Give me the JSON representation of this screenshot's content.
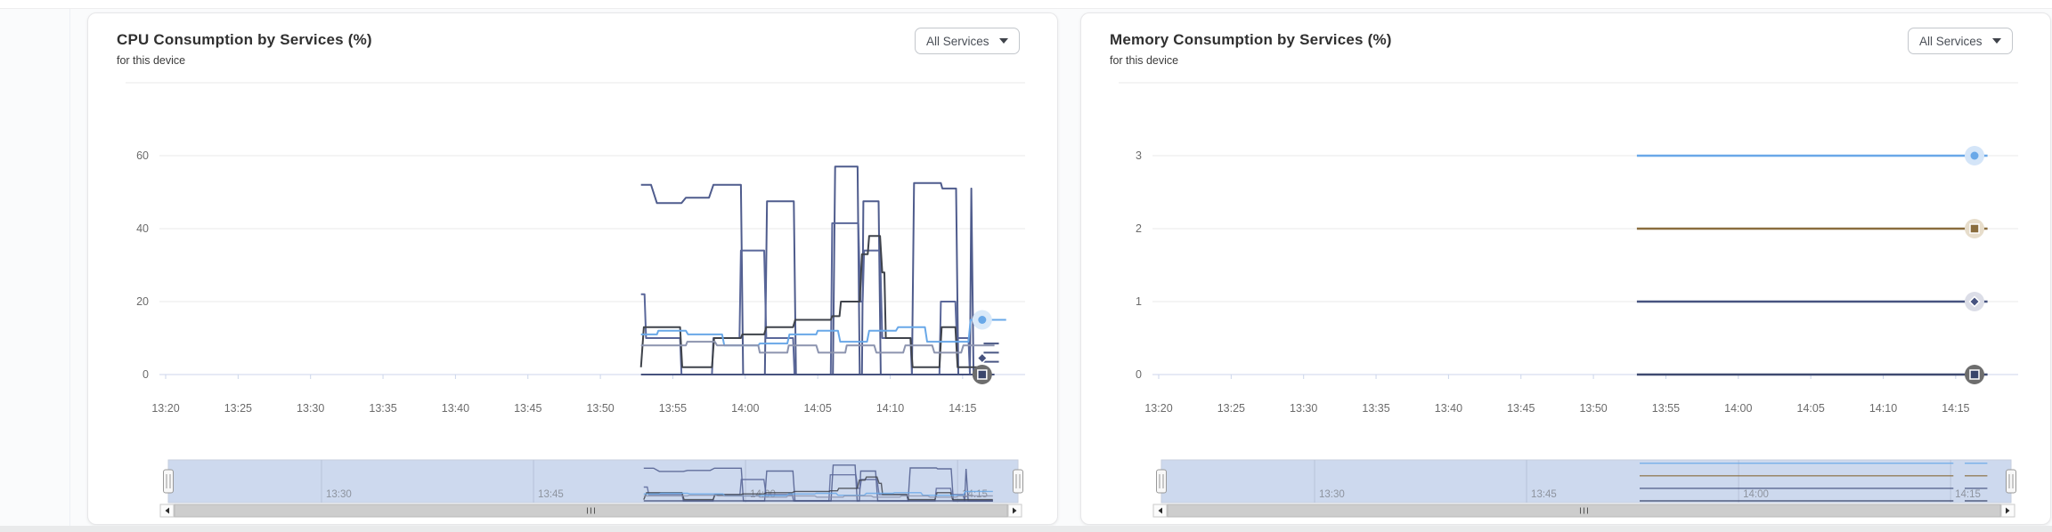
{
  "chart_data": [
    {
      "id": "cpu",
      "type": "line",
      "title": "CPU Consumption by Services (%)",
      "subtitle": "for this device",
      "service_filter": "All Services",
      "ylim": [
        0,
        80
      ],
      "grid": true,
      "legend": "none",
      "y_axis": {
        "gridlines": [
          0,
          20,
          40,
          60,
          80
        ],
        "ticks": [
          {
            "value": 0,
            "label": "0"
          },
          {
            "value": 20,
            "label": "20"
          },
          {
            "value": 40,
            "label": "40"
          },
          {
            "value": 60,
            "label": "60"
          }
        ]
      },
      "x_axis": {
        "ticks": [
          {
            "minute": 0,
            "label": "13:20"
          },
          {
            "minute": 5,
            "label": "13:25"
          },
          {
            "minute": 10,
            "label": "13:30"
          },
          {
            "minute": 15,
            "label": "13:35"
          },
          {
            "minute": 20,
            "label": "13:40"
          },
          {
            "minute": 25,
            "label": "13:45"
          },
          {
            "minute": 30,
            "label": "13:50"
          },
          {
            "minute": 35,
            "label": "13:55"
          },
          {
            "minute": 40,
            "label": "14:00"
          },
          {
            "minute": 45,
            "label": "14:05"
          },
          {
            "minute": 50,
            "label": "14:10"
          },
          {
            "minute": 55,
            "label": "14:15"
          }
        ]
      },
      "series": [
        {
          "color": "#4f5c8d",
          "width": 2,
          "points": [
            [
              32.8,
              52
            ],
            [
              33.5,
              52
            ],
            [
              33.9,
              47
            ],
            [
              35.6,
              47
            ],
            [
              35.9,
              48.5
            ],
            [
              37.5,
              48.5
            ],
            [
              37.8,
              52
            ],
            [
              39.7,
              52
            ],
            [
              39.85,
              0
            ],
            [
              41.35,
              0
            ],
            [
              41.5,
              47.5
            ],
            [
              43.35,
              47.5
            ],
            [
              43.5,
              0
            ],
            [
              46.05,
              0
            ],
            [
              46.2,
              57
            ],
            [
              47.75,
              57
            ],
            [
              47.9,
              0
            ],
            [
              48.05,
              0
            ],
            [
              48.15,
              47.5
            ],
            [
              49.2,
              47.5
            ],
            [
              49.35,
              0
            ],
            [
              51.5,
              0
            ],
            [
              51.65,
              52.5
            ],
            [
              53.5,
              52.5
            ],
            [
              53.6,
              51
            ],
            [
              54.55,
              51
            ],
            [
              54.7,
              0
            ],
            [
              55.5,
              0
            ],
            [
              55.6,
              51
            ],
            [
              55.75,
              0
            ],
            [
              56.4,
              0
            ]
          ]
        },
        {
          "color": "#5a679a",
          "width": 2,
          "points": [
            [
              32.8,
              22
            ],
            [
              33.05,
              22
            ],
            [
              33.15,
              10
            ],
            [
              35.5,
              10
            ],
            [
              35.6,
              0
            ],
            [
              37.7,
              0
            ],
            [
              37.8,
              10
            ],
            [
              39.6,
              10
            ],
            [
              39.7,
              34
            ],
            [
              41.3,
              34
            ],
            [
              41.45,
              10
            ],
            [
              43.3,
              10
            ],
            [
              43.4,
              0
            ],
            [
              45.9,
              0
            ],
            [
              46.0,
              41.5
            ],
            [
              47.8,
              41.5
            ],
            [
              47.95,
              20
            ],
            [
              48.1,
              20
            ],
            [
              48.2,
              34
            ],
            [
              49.3,
              34
            ],
            [
              49.45,
              10
            ],
            [
              51.4,
              10
            ],
            [
              51.5,
              0
            ],
            [
              53.4,
              0
            ],
            [
              53.5,
              20
            ],
            [
              54.5,
              20
            ],
            [
              54.6,
              10
            ],
            [
              55.4,
              10
            ],
            [
              55.5,
              0
            ],
            [
              56.4,
              0
            ]
          ]
        },
        {
          "color": "#3f434b",
          "width": 2,
          "points": [
            [
              32.8,
              2
            ],
            [
              33.0,
              13
            ],
            [
              35.5,
              13
            ],
            [
              35.65,
              2
            ],
            [
              37.7,
              2
            ],
            [
              37.85,
              10
            ],
            [
              39.7,
              10
            ],
            [
              39.8,
              11
            ],
            [
              41.3,
              11
            ],
            [
              41.45,
              13
            ],
            [
              43.3,
              13
            ],
            [
              43.45,
              15
            ],
            [
              45.9,
              15
            ],
            [
              46.0,
              16
            ],
            [
              46.5,
              16
            ],
            [
              46.6,
              20
            ],
            [
              47.9,
              20
            ],
            [
              48.05,
              33
            ],
            [
              48.45,
              33
            ],
            [
              48.55,
              38
            ],
            [
              49.3,
              38
            ],
            [
              49.45,
              28
            ],
            [
              49.6,
              28
            ],
            [
              49.7,
              10
            ],
            [
              51.4,
              10
            ],
            [
              51.55,
              2
            ],
            [
              53.4,
              2
            ],
            [
              53.55,
              13
            ],
            [
              54.5,
              13
            ],
            [
              54.65,
              2
            ],
            [
              56.4,
              2
            ]
          ]
        },
        {
          "color": "#69a8e8",
          "width": 2,
          "points": [
            [
              32.8,
              11
            ],
            [
              33.9,
              11
            ],
            [
              34.0,
              12
            ],
            [
              35.9,
              12
            ],
            [
              36.05,
              11
            ],
            [
              38.4,
              11
            ],
            [
              38.55,
              8
            ],
            [
              40.9,
              8
            ],
            [
              41.0,
              8.5
            ],
            [
              42.9,
              8.5
            ],
            [
              43.05,
              11
            ],
            [
              44.9,
              11
            ],
            [
              45.0,
              12
            ],
            [
              46.4,
              12
            ],
            [
              46.55,
              9
            ],
            [
              48.4,
              9
            ],
            [
              48.55,
              12
            ],
            [
              50.4,
              12
            ],
            [
              50.55,
              13
            ],
            [
              52.4,
              13
            ],
            [
              52.55,
              9
            ],
            [
              55.4,
              9
            ],
            [
              55.55,
              15
            ],
            [
              58.0,
              15
            ]
          ]
        },
        {
          "color": "#8c94af",
          "width": 2,
          "points": [
            [
              32.8,
              8
            ],
            [
              35.9,
              8
            ],
            [
              36.0,
              9
            ],
            [
              37.9,
              9
            ],
            [
              38.05,
              8
            ],
            [
              40.9,
              8
            ],
            [
              41.0,
              6
            ],
            [
              42.9,
              6
            ],
            [
              43.0,
              8
            ],
            [
              44.9,
              8
            ],
            [
              45.05,
              6
            ],
            [
              46.9,
              6
            ],
            [
              47.0,
              8
            ],
            [
              48.9,
              8
            ],
            [
              49.05,
              6
            ],
            [
              50.9,
              6
            ],
            [
              51.05,
              8
            ],
            [
              52.9,
              8
            ],
            [
              53.05,
              6
            ],
            [
              54.9,
              6
            ],
            [
              55.05,
              8
            ],
            [
              57.2,
              8
            ]
          ]
        },
        {
          "color": "#46527e",
          "width": 2,
          "points": [
            [
              32.8,
              0
            ],
            [
              57.2,
              0
            ]
          ]
        }
      ],
      "end_stubs": {
        "t1": 56.45,
        "t2": 57.5,
        "color": "#4a5784",
        "values": [
          8.5,
          6,
          3.5
        ]
      },
      "end_markers": [
        {
          "t": 56.35,
          "v": 0,
          "shape": "square",
          "color": "#3a466c",
          "halo": "#6d6d6d",
          "stroke": "#ffffff"
        },
        {
          "t": 56.35,
          "v": 4.5,
          "shape": "diamond",
          "color": "#46527e",
          "stroke": "#ffffff"
        },
        {
          "t": 56.35,
          "v": 15,
          "shape": "circle",
          "color": "#69a8e8",
          "halo": "#d9e9f9"
        }
      ],
      "navigator": {
        "ticks": [
          {
            "minute": 10,
            "label": "13:30"
          },
          {
            "minute": 25,
            "label": "13:45"
          },
          {
            "minute": 40,
            "label": "14:00"
          },
          {
            "minute": 55,
            "label": "14:15"
          }
        ],
        "t_ranges": [
          [
            32.8,
            57.5
          ]
        ]
      }
    },
    {
      "id": "mem",
      "type": "line",
      "title": "Memory Consumption by Services (%)",
      "subtitle": "for this device",
      "service_filter": "All Services",
      "ylim": [
        0,
        4
      ],
      "grid": true,
      "legend": "none",
      "y_axis": {
        "gridlines": [
          0,
          1,
          2,
          3,
          4
        ],
        "ticks": [
          {
            "value": 0,
            "label": "0"
          },
          {
            "value": 1,
            "label": "1"
          },
          {
            "value": 2,
            "label": "2"
          },
          {
            "value": 3,
            "label": "3"
          }
        ]
      },
      "x_axis": {
        "ticks": [
          {
            "minute": 0,
            "label": "13:20"
          },
          {
            "minute": 5,
            "label": "13:25"
          },
          {
            "minute": 10,
            "label": "13:30"
          },
          {
            "minute": 15,
            "label": "13:35"
          },
          {
            "minute": 20,
            "label": "13:40"
          },
          {
            "minute": 25,
            "label": "13:45"
          },
          {
            "minute": 30,
            "label": "13:50"
          },
          {
            "minute": 35,
            "label": "13:55"
          },
          {
            "minute": 40,
            "label": "14:00"
          },
          {
            "minute": 45,
            "label": "14:05"
          },
          {
            "minute": 50,
            "label": "14:10"
          },
          {
            "minute": 55,
            "label": "14:15"
          }
        ]
      },
      "series": [
        {
          "color": "#69a8e8",
          "width": 2.5,
          "points": [
            [
              33,
              3
            ],
            [
              57.2,
              3
            ]
          ]
        },
        {
          "color": "#8a6d3e",
          "width": 2.5,
          "points": [
            [
              33,
              2
            ],
            [
              57.2,
              2
            ]
          ]
        },
        {
          "color": "#475380",
          "width": 2.5,
          "points": [
            [
              33,
              1
            ],
            [
              57.2,
              1
            ]
          ]
        },
        {
          "color": "#3f4a70",
          "width": 2.5,
          "points": [
            [
              33,
              0
            ],
            [
              57.2,
              0
            ]
          ]
        }
      ],
      "end_markers": [
        {
          "t": 56.3,
          "v": 3,
          "shape": "circle",
          "color": "#69a8e8",
          "halo": "#d4e5f8"
        },
        {
          "t": 56.3,
          "v": 2,
          "shape": "square",
          "color": "#8a6d3e",
          "halo": "#e7ddcb",
          "stroke": "#ffffff"
        },
        {
          "t": 56.3,
          "v": 1,
          "shape": "diamond",
          "color": "#475380",
          "halo": "#dbdde7",
          "stroke": "#ffffff"
        },
        {
          "t": 56.3,
          "v": 0,
          "shape": "square",
          "color": "#39466b",
          "halo": "#6d6d6d",
          "stroke": "#ffffff"
        }
      ],
      "navigator": {
        "ticks": [
          {
            "minute": 10,
            "label": "13:30"
          },
          {
            "minute": 25,
            "label": "13:45"
          },
          {
            "minute": 40,
            "label": "14:00"
          },
          {
            "minute": 55,
            "label": "14:15"
          }
        ],
        "t_ranges": [
          [
            33,
            55.2
          ],
          [
            56.0,
            57.6
          ]
        ]
      }
    }
  ],
  "colors": {
    "gridline": "#e8e8e8",
    "axis_line": "#ccd6eb",
    "navigator_mask": "#cdd9ee",
    "navigator_outline": "#c6cedd",
    "scrollbar_track": "#ececec",
    "scrollbar_thumb": "#cdcdcd"
  }
}
